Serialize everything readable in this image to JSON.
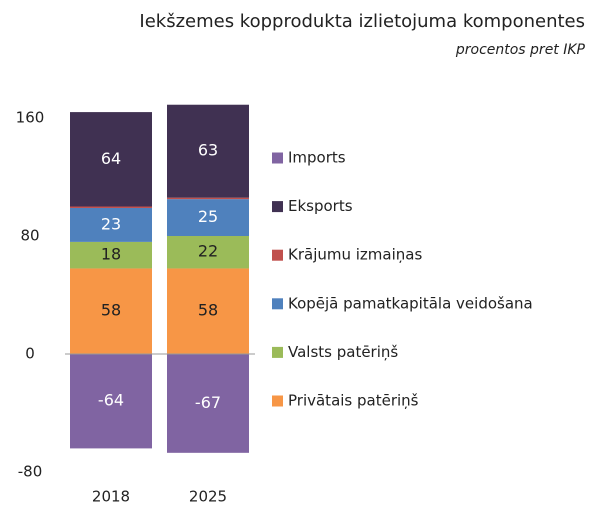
{
  "chart_data": {
    "type": "stacked_bar",
    "title": "Iekšzemes kopprodukta izlietojuma komponentes",
    "subtitle": "procentos pret IKP",
    "categories": [
      "2018",
      "2025"
    ],
    "series": [
      {
        "name": "Imports",
        "color": "#8064a2",
        "label_color": "#ffffff",
        "labels": true,
        "values": [
          -64,
          -67
        ]
      },
      {
        "name": "Eksports",
        "color": "#403152",
        "label_color": "#ffffff",
        "labels": true,
        "values": [
          64,
          63
        ]
      },
      {
        "name": "Krājumu izmaiņas",
        "color": "#c0504d",
        "label_color": "#ffffff",
        "labels": false,
        "values": [
          1,
          1
        ]
      },
      {
        "name": "Kopējā pamatkapitāla veidošana",
        "color": "#4f81bd",
        "label_color": "#ffffff",
        "labels": true,
        "values": [
          23,
          25
        ]
      },
      {
        "name": "Valsts patēriņš",
        "color": "#9bbb59",
        "label_color": "#222222",
        "labels": true,
        "values": [
          18,
          22
        ]
      },
      {
        "name": "Privātais patēriņš",
        "color": "#f79646",
        "label_color": "#222222",
        "labels": true,
        "values": [
          58,
          58
        ]
      }
    ],
    "ylim": [
      -80,
      170
    ],
    "yticks": [
      -80,
      0,
      80,
      160
    ],
    "grid": false
  }
}
